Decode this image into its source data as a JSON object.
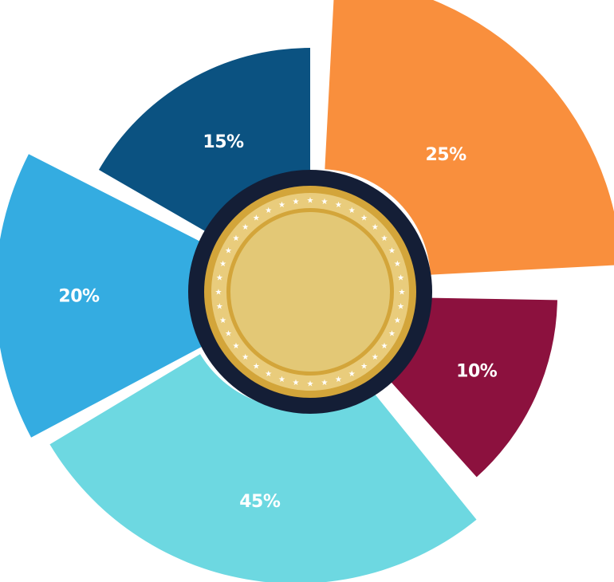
{
  "chart_data": {
    "type": "pie",
    "variant": "radial-exploded-donut",
    "title": "",
    "slices": [
      {
        "label": "25%",
        "value": 25,
        "color": "#F98F3D"
      },
      {
        "label": "10%",
        "value": 10,
        "color": "#8C113E"
      },
      {
        "label": "45%",
        "value": 45,
        "color": "#6DD8E1"
      },
      {
        "label": "20%",
        "value": 20,
        "color": "#34ACE1"
      },
      {
        "label": "15%",
        "value": 15,
        "color": "#0B5281"
      }
    ],
    "center": {
      "ring_color": "#141E36",
      "coin_color": "#E3C876",
      "coin_rim_color": "#D3A53A",
      "star_color": "#FFFFFF"
    }
  }
}
